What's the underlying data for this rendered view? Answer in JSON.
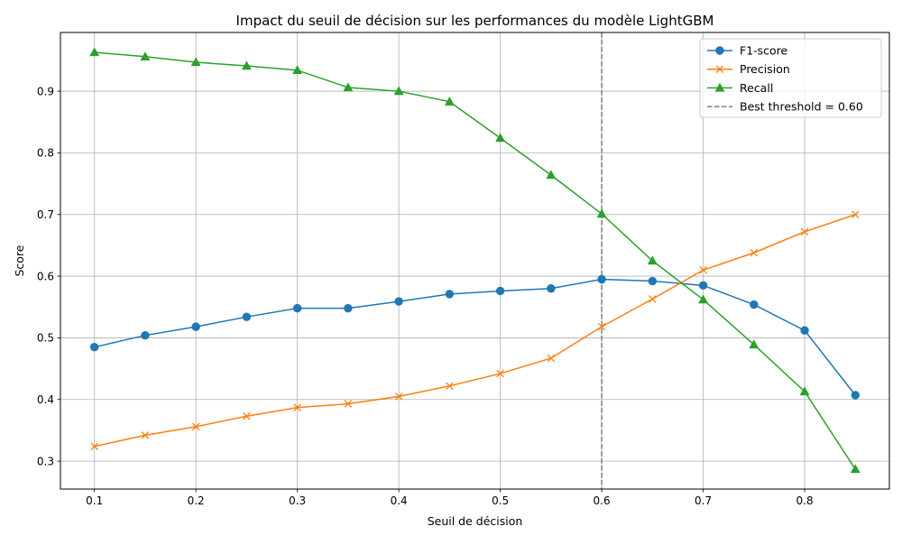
{
  "chart_data": {
    "type": "line",
    "title": "Impact du seuil de décision sur les performances du modèle LightGBM",
    "xlabel": "Seuil de décision",
    "ylabel": "Score",
    "xlim": [
      0.0665,
      0.8835
    ],
    "ylim": [
      0.2548,
      0.9952
    ],
    "xticks": [
      0.1,
      0.2,
      0.3,
      0.4,
      0.5,
      0.6,
      0.7,
      0.8
    ],
    "xtick_labels": [
      "0.1",
      "0.2",
      "0.3",
      "0.4",
      "0.5",
      "0.6",
      "0.7",
      "0.8"
    ],
    "yticks": [
      0.3,
      0.4,
      0.5,
      0.6,
      0.7,
      0.8,
      0.9
    ],
    "ytick_labels": [
      "0.3",
      "0.4",
      "0.5",
      "0.6",
      "0.7",
      "0.8",
      "0.9"
    ],
    "grid": true,
    "legend_position": "upper-right",
    "x": [
      0.1,
      0.15,
      0.2,
      0.25,
      0.3,
      0.35,
      0.4,
      0.45,
      0.5,
      0.55,
      0.6,
      0.65,
      0.7,
      0.75,
      0.8,
      0.85
    ],
    "series": [
      {
        "name": "F1-score",
        "color": "#1f77b4",
        "marker": "circle",
        "values": [
          0.485,
          0.504,
          0.518,
          0.534,
          0.548,
          0.548,
          0.559,
          0.571,
          0.576,
          0.58,
          0.595,
          0.592,
          0.585,
          0.554,
          0.512,
          0.407
        ]
      },
      {
        "name": "Precision",
        "color": "#ff7f0e",
        "marker": "x",
        "values": [
          0.324,
          0.342,
          0.356,
          0.373,
          0.387,
          0.393,
          0.405,
          0.422,
          0.442,
          0.467,
          0.518,
          0.563,
          0.61,
          0.638,
          0.672,
          0.7
        ]
      },
      {
        "name": "Recall",
        "color": "#2ca02c",
        "marker": "triangle",
        "values": [
          0.963,
          0.956,
          0.947,
          0.941,
          0.934,
          0.906,
          0.9,
          0.883,
          0.824,
          0.764,
          0.701,
          0.625,
          0.562,
          0.489,
          0.413,
          0.287
        ]
      }
    ],
    "vline": {
      "x": 0.6,
      "label": "Best threshold = 0.60",
      "color": "#7f7f7f",
      "style": "dashed"
    }
  }
}
